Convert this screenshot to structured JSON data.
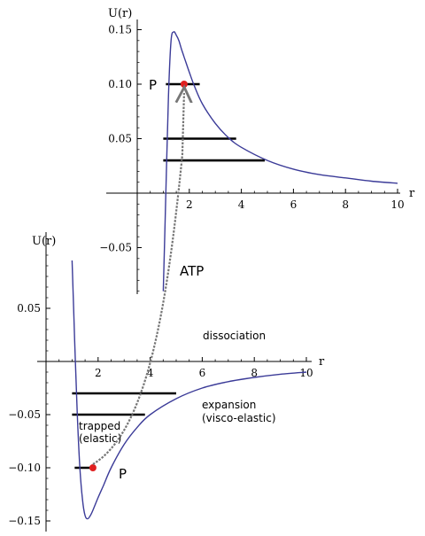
{
  "chart_data": [
    {
      "id": "excited",
      "type": "line",
      "ylabel": "U(r)",
      "xlabel": "r",
      "xlim": [
        0,
        10
      ],
      "ylim": [
        -0.1,
        0.16
      ],
      "xticks": [
        2,
        4,
        6,
        8,
        10
      ],
      "xtick_labels": [
        "2",
        "4",
        "6",
        "8",
        "10"
      ],
      "yticks": [
        0.15,
        0.1,
        0.05,
        -0.05
      ],
      "ytick_labels": [
        "0.15",
        "0.10",
        "0.05",
        "−0.05"
      ],
      "curve": {
        "x": [
          1.0,
          1.1,
          1.2,
          1.3,
          1.4,
          1.5,
          1.6,
          1.7,
          1.8,
          2.0,
          2.2,
          2.5,
          3.0,
          3.5,
          4.0,
          5.0,
          6.0,
          7.0,
          8.0,
          9.0,
          10.0
        ],
        "y": [
          -0.09,
          0.0,
          0.09,
          0.14,
          0.148,
          0.145,
          0.14,
          0.132,
          0.125,
          0.111,
          0.098,
          0.082,
          0.064,
          0.051,
          0.042,
          0.03,
          0.022,
          0.017,
          0.014,
          0.011,
          0.009
        ]
      },
      "levels": [
        {
          "x_start": 1.0,
          "x_end": 3.8,
          "y": 0.05
        },
        {
          "x_start": 1.0,
          "x_end": 4.9,
          "y": 0.03
        },
        {
          "x_start": 1.1,
          "x_end": 2.4,
          "y": 0.1
        }
      ],
      "point": {
        "x": 1.8,
        "y": 0.1,
        "label": "P"
      },
      "colors": {
        "curve": "#3b3b98",
        "point": "#e02020",
        "level": "#000000"
      }
    },
    {
      "id": "ground",
      "type": "line",
      "ylabel": "U(r)",
      "xlabel": "r",
      "xlim": [
        0,
        10
      ],
      "ylim": [
        -0.15,
        0.1
      ],
      "xticks": [
        2,
        4,
        6,
        8,
        10
      ],
      "xtick_labels": [
        "2",
        "4",
        "6",
        "8",
        "10"
      ],
      "yticks": [
        0.05,
        -0.05,
        -0.1,
        -0.15
      ],
      "ytick_labels": [
        "0.05",
        "−0.05",
        "−0.10",
        "−0.15"
      ],
      "curve": {
        "x": [
          1.0,
          1.1,
          1.2,
          1.3,
          1.4,
          1.5,
          1.6,
          1.7,
          1.8,
          2.0,
          2.2,
          2.5,
          3.0,
          3.5,
          4.0,
          5.0,
          6.0,
          7.0,
          8.0,
          9.0,
          10.0
        ],
        "y": [
          0.095,
          0.02,
          -0.05,
          -0.1,
          -0.13,
          -0.145,
          -0.148,
          -0.145,
          -0.14,
          -0.128,
          -0.117,
          -0.1,
          -0.078,
          -0.062,
          -0.05,
          -0.035,
          -0.025,
          -0.019,
          -0.015,
          -0.012,
          -0.01
        ]
      },
      "levels": [
        {
          "x_start": 1.1,
          "x_end": 1.9,
          "y": -0.1
        },
        {
          "x_start": 1.0,
          "x_end": 3.8,
          "y": -0.05
        },
        {
          "x_start": 1.0,
          "x_end": 5.0,
          "y": -0.03
        }
      ],
      "point": {
        "x": 1.8,
        "y": -0.1,
        "label": "P"
      },
      "annotations": {
        "dissociation": "dissociation",
        "expansion": [
          "expansion",
          "(visco-elastic)"
        ],
        "trapped": [
          "trapped",
          "(elastic)"
        ]
      },
      "colors": {
        "curve": "#3b3b98",
        "point": "#e02020",
        "level": "#000000"
      }
    }
  ],
  "transition": {
    "label": "ATP",
    "color": "#777777"
  }
}
